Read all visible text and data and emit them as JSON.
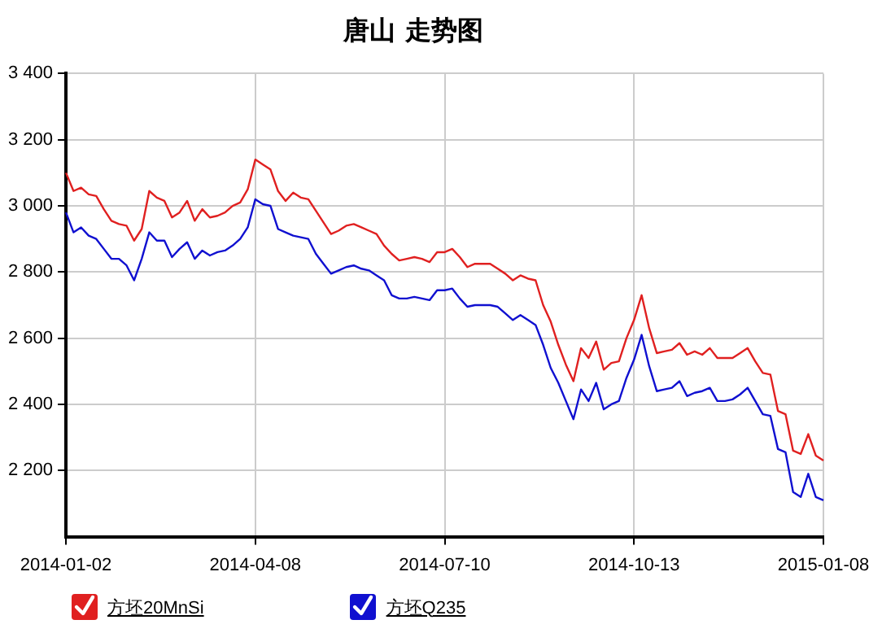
{
  "chart_data": {
    "type": "line",
    "title": "唐山 走势图",
    "categories": [
      "2014-01-02",
      null,
      null,
      null,
      null,
      null,
      null,
      null,
      null,
      null,
      null,
      null,
      null,
      null,
      null,
      null,
      null,
      null,
      null,
      null,
      null,
      null,
      null,
      null,
      null,
      "2014-04-08",
      null,
      null,
      null,
      null,
      null,
      null,
      null,
      null,
      null,
      null,
      null,
      null,
      null,
      null,
      null,
      null,
      null,
      null,
      null,
      null,
      null,
      null,
      null,
      null,
      "2014-07-10",
      null,
      null,
      null,
      null,
      null,
      null,
      null,
      null,
      null,
      null,
      null,
      null,
      null,
      null,
      null,
      null,
      null,
      null,
      null,
      null,
      null,
      null,
      null,
      null,
      "2014-10-13",
      null,
      null,
      null,
      null,
      null,
      null,
      null,
      null,
      null,
      null,
      null,
      null,
      null,
      null,
      null,
      null,
      null,
      null,
      null,
      null,
      null,
      null,
      null,
      null,
      "2015-01-08"
    ],
    "ylim": [
      2000,
      3400
    ],
    "yticks": [
      {
        "value": 2200,
        "label": "2 200"
      },
      {
        "value": 2400,
        "label": "2 400"
      },
      {
        "value": 2600,
        "label": "2 600"
      },
      {
        "value": 2800,
        "label": "2 800"
      },
      {
        "value": 3000,
        "label": "3 000"
      },
      {
        "value": 3200,
        "label": "3 200"
      },
      {
        "value": 3400,
        "label": "3 400"
      }
    ],
    "grid": true,
    "legend": "bottom",
    "series": [
      {
        "name": "方坯20MnSi",
        "color": "#e02020",
        "values": [
          3100,
          3045,
          3055,
          3035,
          3030,
          2990,
          2955,
          2945,
          2940,
          2895,
          2930,
          3045,
          3025,
          3015,
          2965,
          2980,
          3015,
          2955,
          2990,
          2965,
          2970,
          2980,
          3000,
          3010,
          3050,
          3140,
          3125,
          3110,
          3045,
          3015,
          3040,
          3025,
          3020,
          2985,
          2950,
          2915,
          2925,
          2940,
          2945,
          2935,
          2925,
          2915,
          2880,
          2855,
          2835,
          2840,
          2845,
          2840,
          2830,
          2860,
          2860,
          2870,
          2845,
          2815,
          2825,
          2825,
          2825,
          2810,
          2795,
          2775,
          2790,
          2780,
          2775,
          2700,
          2650,
          2580,
          2520,
          2470,
          2570,
          2540,
          2590,
          2505,
          2525,
          2530,
          2600,
          2655,
          2730,
          2630,
          2555,
          2560,
          2565,
          2585,
          2550,
          2560,
          2550,
          2570,
          2540,
          2540,
          2540,
          2555,
          2570,
          2530,
          2495,
          2490,
          2380,
          2370,
          2260,
          2250,
          2310,
          2245,
          2230
        ]
      },
      {
        "name": "方坯Q235",
        "color": "#1010d0",
        "values": [
          2980,
          2920,
          2935,
          2910,
          2900,
          2870,
          2840,
          2840,
          2820,
          2775,
          2840,
          2920,
          2895,
          2895,
          2845,
          2870,
          2890,
          2840,
          2865,
          2850,
          2860,
          2865,
          2880,
          2900,
          2935,
          3020,
          3005,
          3000,
          2930,
          2920,
          2910,
          2905,
          2900,
          2855,
          2825,
          2795,
          2805,
          2815,
          2820,
          2810,
          2805,
          2790,
          2775,
          2730,
          2720,
          2720,
          2725,
          2720,
          2715,
          2745,
          2745,
          2750,
          2720,
          2695,
          2700,
          2700,
          2700,
          2695,
          2675,
          2655,
          2670,
          2655,
          2640,
          2580,
          2510,
          2465,
          2410,
          2355,
          2445,
          2410,
          2465,
          2385,
          2400,
          2410,
          2480,
          2535,
          2610,
          2515,
          2440,
          2445,
          2450,
          2470,
          2425,
          2435,
          2440,
          2450,
          2410,
          2410,
          2415,
          2430,
          2450,
          2410,
          2370,
          2365,
          2265,
          2255,
          2135,
          2120,
          2190,
          2120,
          2110
        ]
      }
    ]
  }
}
